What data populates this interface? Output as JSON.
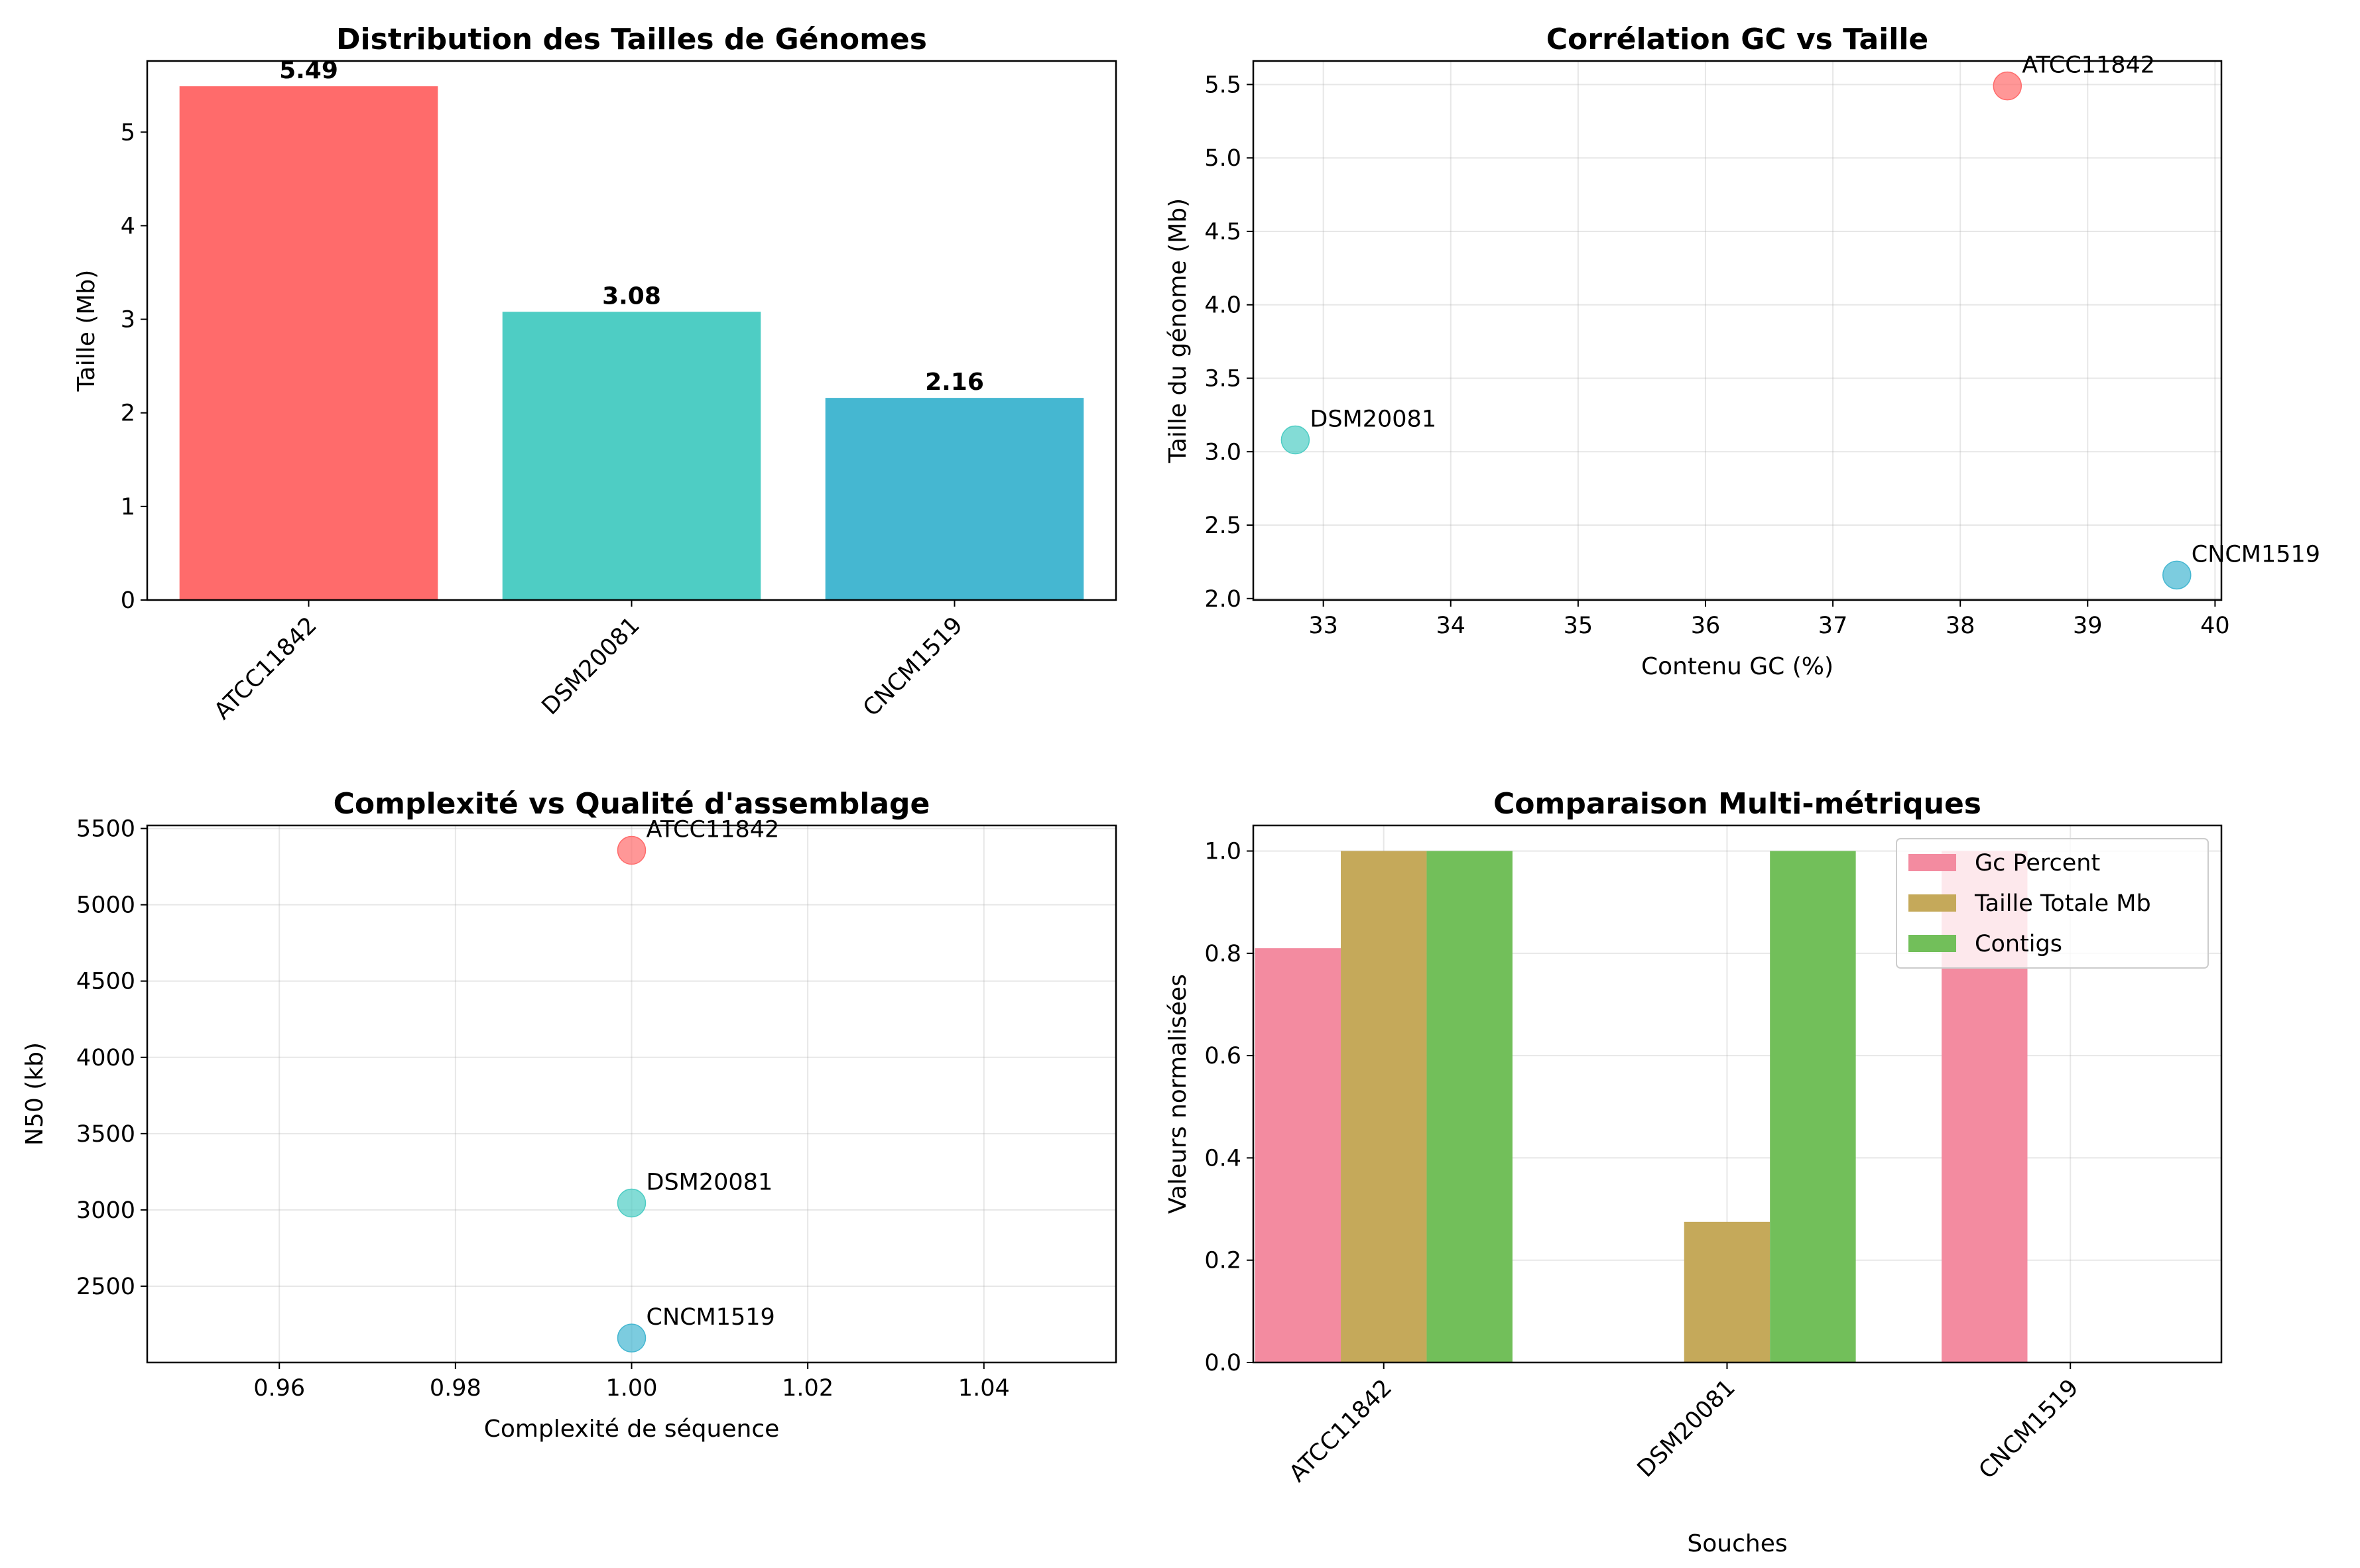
{
  "chart_data": [
    {
      "type": "bar",
      "title": "Distribution des Tailles de Génomes",
      "xlabel": "",
      "ylabel": "Taille (Mb)",
      "categories": [
        "ATCC11842",
        "DSM20081",
        "CNCM1519"
      ],
      "values": [
        5.49,
        3.08,
        2.16
      ],
      "value_labels": [
        "5.49",
        "3.08",
        "2.16"
      ],
      "colors": [
        "#ff6b6b",
        "#4ecdc4",
        "#45b7d1"
      ],
      "ylim": [
        0,
        5.76
      ],
      "yticks": [
        0,
        1,
        2,
        3,
        4,
        5
      ],
      "grid": false
    },
    {
      "type": "scatter",
      "title": "Corrélation GC vs Taille",
      "xlabel": "Contenu GC (%)",
      "ylabel": "Taille du génome (Mb)",
      "points": [
        {
          "label": "ATCC11842",
          "x": 38.37,
          "y": 5.49,
          "color": "#ff6b6b"
        },
        {
          "label": "DSM20081",
          "x": 32.78,
          "y": 3.08,
          "color": "#4ecdc4"
        },
        {
          "label": "CNCM1519",
          "x": 39.7,
          "y": 2.16,
          "color": "#45b7d1"
        }
      ],
      "xlim": [
        32.45,
        40.05
      ],
      "ylim": [
        1.99,
        5.66
      ],
      "xticks": [
        33,
        34,
        35,
        36,
        37,
        38,
        39,
        40
      ],
      "yticks": [
        2.0,
        2.5,
        3.0,
        3.5,
        4.0,
        4.5,
        5.0,
        5.5
      ],
      "grid": true
    },
    {
      "type": "scatter",
      "title": "Complexité vs Qualité d'assemblage",
      "xlabel": "Complexité de séquence",
      "ylabel": "N50 (kb)",
      "points": [
        {
          "label": "ATCC11842",
          "x": 1.0,
          "y": 5357,
          "color": "#ff6b6b"
        },
        {
          "label": "DSM20081",
          "x": 1.0,
          "y": 3045,
          "color": "#4ecdc4"
        },
        {
          "label": "CNCM1519",
          "x": 1.0,
          "y": 2160,
          "color": "#45b7d1"
        }
      ],
      "xlim": [
        0.945,
        1.055
      ],
      "ylim": [
        2000,
        5520
      ],
      "xticks": [
        0.96,
        0.98,
        1.0,
        1.02,
        1.04
      ],
      "yticks": [
        2500,
        3000,
        3500,
        4000,
        4500,
        5000,
        5500
      ],
      "grid": true
    },
    {
      "type": "bar",
      "title": "Comparaison Multi-métriques",
      "xlabel": "Souches",
      "ylabel": "Valeurs normalisées",
      "categories": [
        "ATCC11842",
        "DSM20081",
        "CNCM1519"
      ],
      "series": [
        {
          "name": "Gc Percent",
          "values": [
            0.81,
            0.0,
            1.0
          ],
          "color": "#f38ba0"
        },
        {
          "name": "Taille Totale Mb",
          "values": [
            1.0,
            0.275,
            0.0
          ],
          "color": "#c5a95a"
        },
        {
          "name": "Contigs",
          "values": [
            1.0,
            1.0,
            0.0
          ],
          "color": "#72bf5a"
        }
      ],
      "ylim": [
        0,
        1.05
      ],
      "yticks": [
        0.0,
        0.2,
        0.4,
        0.6,
        0.8,
        1.0
      ],
      "legend_position": "top-right",
      "grid": true
    }
  ]
}
